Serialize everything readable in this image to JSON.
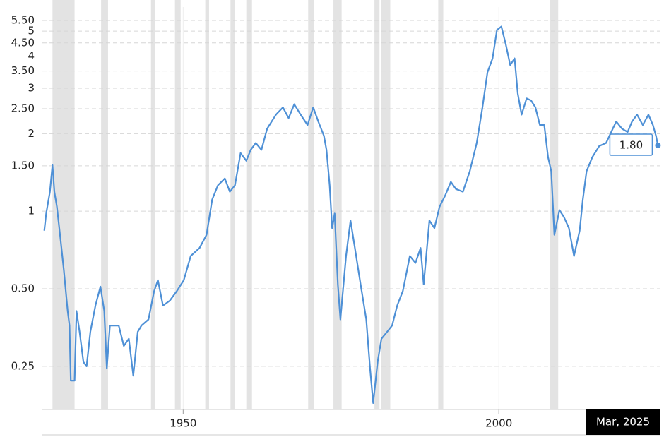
{
  "chart_data": {
    "type": "line",
    "log_scale": true,
    "grid": true,
    "xlim": [
      1927.7,
      2025.6
    ],
    "xticks": [
      1950,
      2000
    ],
    "ylim": [
      0.17,
      6.2
    ],
    "yticks": [
      {
        "value": 0.25,
        "label": "0.25"
      },
      {
        "value": 0.5,
        "label": "0.50"
      },
      1,
      {
        "value": 1.5,
        "label": "1.50"
      },
      2,
      {
        "value": 2.5,
        "label": "2.50"
      },
      3,
      {
        "value": 3.5,
        "label": "3.50"
      },
      4,
      {
        "value": 4.5,
        "label": "4.50"
      },
      5,
      {
        "value": 5.5,
        "label": "5.50"
      }
    ],
    "recession_color": "#e3e3e3",
    "recessions": [
      [
        1929.3,
        1932.8
      ],
      [
        1937.0,
        1938.1
      ],
      [
        1944.9,
        1945.5
      ],
      [
        1948.7,
        1949.6
      ],
      [
        1953.5,
        1954.1
      ],
      [
        1957.5,
        1958.2
      ],
      [
        1960.0,
        1960.9
      ],
      [
        1969.8,
        1970.7
      ],
      [
        1973.8,
        1975.1
      ],
      [
        1980.3,
        1981.1
      ],
      [
        1981.4,
        1982.8
      ],
      [
        1990.4,
        1991.2
      ],
      [
        2008.1,
        2009.4
      ]
    ],
    "end_x_label": "Mar, 2025",
    "series": [
      {
        "color": "#4e90d6",
        "x": [
          1928.0,
          1928.3,
          1928.9,
          1929.3,
          1929.6,
          1930.0,
          1930.5,
          1931.1,
          1931.7,
          1932.0,
          1932.2,
          1932.8,
          1933.1,
          1933.6,
          1934.2,
          1934.7,
          1935.3,
          1936.1,
          1936.9,
          1937.5,
          1937.9,
          1938.4,
          1939.2,
          1939.8,
          1940.6,
          1941.4,
          1942.1,
          1942.8,
          1943.4,
          1944.5,
          1945.4,
          1946.0,
          1946.8,
          1947.9,
          1949.0,
          1950.1,
          1951.2,
          1952.6,
          1953.7,
          1954.6,
          1955.5,
          1956.6,
          1957.4,
          1958.2,
          1959.1,
          1960.0,
          1960.7,
          1961.5,
          1962.4,
          1963.3,
          1964.7,
          1965.8,
          1966.7,
          1967.6,
          1968.6,
          1969.7,
          1970.6,
          1971.4,
          1972.3,
          1972.7,
          1973.2,
          1973.6,
          1974.0,
          1974.5,
          1974.9,
          1975.4,
          1975.8,
          1976.5,
          1977.2,
          1978.1,
          1979.0,
          1979.6,
          1980.1,
          1980.8,
          1981.4,
          1982.3,
          1983.1,
          1983.9,
          1984.8,
          1985.9,
          1986.8,
          1987.6,
          1988.1,
          1989.0,
          1989.8,
          1990.6,
          1991.5,
          1992.4,
          1993.2,
          1994.3,
          1995.4,
          1996.5,
          1997.4,
          1998.2,
          1999.0,
          1999.7,
          2000.4,
          2001.1,
          2001.8,
          2002.5,
          2003.0,
          2003.6,
          2004.4,
          2005.1,
          2005.8,
          2006.5,
          2007.2,
          2007.8,
          2008.3,
          2008.8,
          2009.6,
          2010.3,
          2011.1,
          2011.9,
          2012.8,
          2013.3,
          2013.9,
          2014.8,
          2015.9,
          2017.0,
          2017.8,
          2018.6,
          2019.5,
          2020.4,
          2021.1,
          2021.9,
          2022.8,
          2023.7,
          2024.4,
          2024.9,
          2025.2
        ],
        "values": [
          0.84,
          0.98,
          1.19,
          1.51,
          1.19,
          1.04,
          0.81,
          0.59,
          0.41,
          0.36,
          0.22,
          0.22,
          0.41,
          0.34,
          0.26,
          0.25,
          0.34,
          0.43,
          0.51,
          0.41,
          0.245,
          0.36,
          0.36,
          0.36,
          0.3,
          0.32,
          0.23,
          0.34,
          0.36,
          0.38,
          0.49,
          0.54,
          0.43,
          0.45,
          0.49,
          0.54,
          0.67,
          0.72,
          0.81,
          1.11,
          1.26,
          1.34,
          1.19,
          1.26,
          1.68,
          1.57,
          1.73,
          1.84,
          1.73,
          2.09,
          2.37,
          2.53,
          2.3,
          2.6,
          2.37,
          2.16,
          2.53,
          2.23,
          1.96,
          1.73,
          1.26,
          0.86,
          0.98,
          0.52,
          0.38,
          0.52,
          0.67,
          0.92,
          0.72,
          0.52,
          0.38,
          0.245,
          0.18,
          0.26,
          0.32,
          0.34,
          0.36,
          0.43,
          0.49,
          0.67,
          0.63,
          0.72,
          0.52,
          0.92,
          0.86,
          1.04,
          1.15,
          1.3,
          1.22,
          1.19,
          1.43,
          1.84,
          2.53,
          3.46,
          3.92,
          5.05,
          5.21,
          4.45,
          3.69,
          3.92,
          2.86,
          2.37,
          2.74,
          2.69,
          2.53,
          2.16,
          2.16,
          1.62,
          1.43,
          0.81,
          1.01,
          0.95,
          0.86,
          0.67,
          0.84,
          1.11,
          1.43,
          1.62,
          1.79,
          1.84,
          2.03,
          2.23,
          2.09,
          2.03,
          2.23,
          2.37,
          2.16,
          2.37,
          2.16,
          1.96,
          1.8
        ],
        "value_labels": [
          null,
          null,
          null,
          null,
          null,
          null,
          null,
          null,
          null,
          null,
          null,
          null,
          null,
          null,
          null,
          null,
          null,
          null,
          null,
          null,
          null,
          null,
          null,
          null,
          null,
          null,
          null,
          null,
          null,
          null,
          null,
          null,
          null,
          null,
          null,
          null,
          null,
          null,
          null,
          null,
          null,
          null,
          null,
          null,
          null,
          null,
          null,
          null,
          null,
          null,
          null,
          null,
          null,
          null,
          null,
          null,
          null,
          null,
          null,
          null,
          null,
          null,
          null,
          null,
          null,
          null,
          null,
          null,
          null,
          null,
          null,
          null,
          null,
          null,
          null,
          null,
          null,
          null,
          null,
          null,
          null,
          null,
          null,
          null,
          null,
          null,
          null,
          null,
          null,
          null,
          null,
          null,
          null,
          null,
          null,
          null,
          null,
          null,
          null,
          null,
          null,
          null,
          null,
          null,
          null,
          null,
          null,
          null,
          null,
          null,
          null,
          null,
          null,
          null,
          null,
          null,
          null,
          null,
          null,
          null,
          null,
          null,
          null,
          null,
          null,
          null,
          null,
          null,
          null,
          null,
          "1.80"
        ]
      }
    ]
  }
}
